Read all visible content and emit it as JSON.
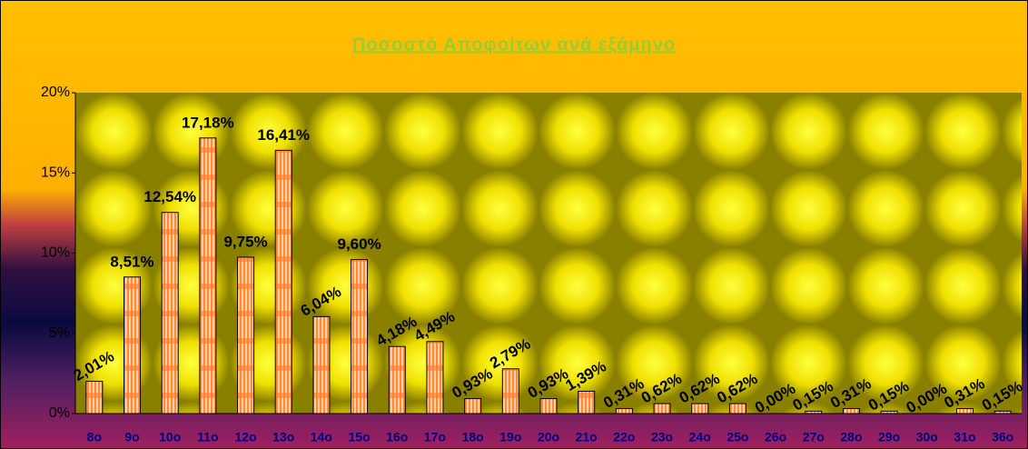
{
  "chart_data": {
    "type": "bar",
    "title": "Ποσοστό Αποφοίτων ανά εξάμηνο",
    "categories": [
      "8ο",
      "9ο",
      "10ο",
      "11ο",
      "12ο",
      "13ο",
      "14ο",
      "15ο",
      "16ο",
      "17ο",
      "18ο",
      "19ο",
      "20ο",
      "21ο",
      "22ο",
      "23ο",
      "24ο",
      "25ο",
      "26ο",
      "27ο",
      "28ο",
      "29ο",
      "30ο",
      "31ο",
      "36ο"
    ],
    "values": [
      2.01,
      8.51,
      12.54,
      17.18,
      9.75,
      16.41,
      6.04,
      9.6,
      4.18,
      4.49,
      0.93,
      2.79,
      0.93,
      1.39,
      0.31,
      0.62,
      0.62,
      0.62,
      0.0,
      0.15,
      0.31,
      0.15,
      0.0,
      0.31,
      0.15
    ],
    "value_labels": [
      "2,01%",
      "8,51%",
      "12,54%",
      "17,18%",
      "9,75%",
      "16,41%",
      "6,04%",
      "9,60%",
      "4,18%",
      "4,49%",
      "0,93%",
      "2,79%",
      "0,93%",
      "1,39%",
      "0,31%",
      "0,62%",
      "0,62%",
      "0,62%",
      "0,00%",
      "0,15%",
      "0,31%",
      "0,15%",
      "0,00%",
      "0,31%",
      "0,15%"
    ],
    "color": "#ff9a4a",
    "ylim": [
      0,
      20
    ],
    "yticks": [
      {
        "value": 0,
        "label": "0%"
      },
      {
        "value": 5,
        "label": "5%"
      },
      {
        "value": 10,
        "label": "10%"
      },
      {
        "value": 15,
        "label": "15%"
      },
      {
        "value": 20,
        "label": "20%"
      }
    ],
    "grid": false
  }
}
